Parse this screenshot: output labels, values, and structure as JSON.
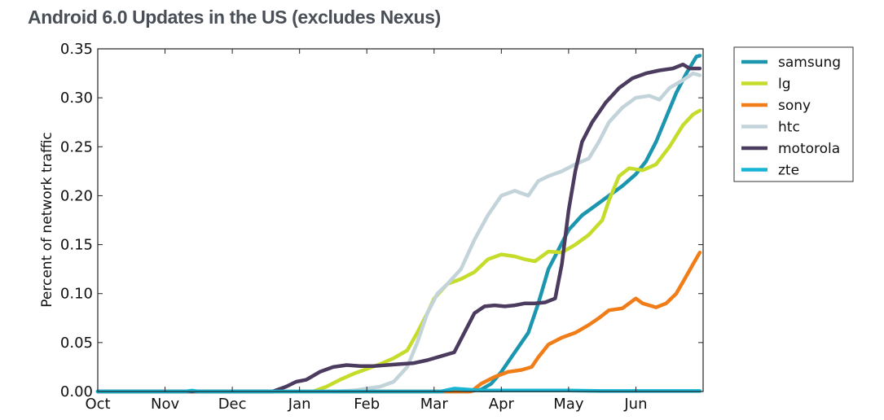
{
  "chart_data": {
    "type": "line",
    "title": "Android 6.0 Updates in the US (excludes Nexus)",
    "ylabel": "Percent of network traffic",
    "xlabel": "",
    "xlim": [
      0,
      9
    ],
    "ylim": [
      0,
      0.35
    ],
    "x_tick_labels": [
      "Oct",
      "Nov",
      "Dec",
      "Jan",
      "Feb",
      "Mar",
      "Apr",
      "May",
      "Jun"
    ],
    "y_ticks": [
      0.0,
      0.05,
      0.1,
      0.15,
      0.2,
      0.25,
      0.3,
      0.35
    ],
    "y_tick_labels": [
      "0.00",
      "0.05",
      "0.10",
      "0.15",
      "0.20",
      "0.25",
      "0.30",
      "0.35"
    ],
    "grid": false,
    "legend_position": "outside-right-top",
    "series": [
      {
        "name": "samsung",
        "color": "#1b96ae",
        "points": [
          [
            0,
            0
          ],
          [
            5.5,
            0
          ],
          [
            5.7,
            0.002
          ],
          [
            5.85,
            0.008
          ],
          [
            6,
            0.02
          ],
          [
            6.2,
            0.04
          ],
          [
            6.4,
            0.06
          ],
          [
            6.55,
            0.09
          ],
          [
            6.7,
            0.125
          ],
          [
            6.85,
            0.145
          ],
          [
            7,
            0.165
          ],
          [
            7.2,
            0.18
          ],
          [
            7.4,
            0.19
          ],
          [
            7.6,
            0.2
          ],
          [
            7.8,
            0.21
          ],
          [
            8,
            0.222
          ],
          [
            8.15,
            0.235
          ],
          [
            8.3,
            0.255
          ],
          [
            8.45,
            0.28
          ],
          [
            8.6,
            0.305
          ],
          [
            8.75,
            0.325
          ],
          [
            8.9,
            0.342
          ],
          [
            8.95,
            0.343
          ]
        ]
      },
      {
        "name": "lg",
        "color": "#c5dc2a",
        "points": [
          [
            0,
            0
          ],
          [
            3.2,
            0
          ],
          [
            3.4,
            0.005
          ],
          [
            3.6,
            0.012
          ],
          [
            3.8,
            0.018
          ],
          [
            4,
            0.023
          ],
          [
            4.2,
            0.028
          ],
          [
            4.4,
            0.034
          ],
          [
            4.6,
            0.042
          ],
          [
            4.75,
            0.06
          ],
          [
            4.9,
            0.08
          ],
          [
            5,
            0.095
          ],
          [
            5.2,
            0.11
          ],
          [
            5.4,
            0.115
          ],
          [
            5.6,
            0.122
          ],
          [
            5.8,
            0.135
          ],
          [
            6,
            0.14
          ],
          [
            6.2,
            0.138
          ],
          [
            6.35,
            0.135
          ],
          [
            6.5,
            0.133
          ],
          [
            6.7,
            0.143
          ],
          [
            6.9,
            0.142
          ],
          [
            7.1,
            0.15
          ],
          [
            7.3,
            0.16
          ],
          [
            7.5,
            0.175
          ],
          [
            7.6,
            0.195
          ],
          [
            7.75,
            0.22
          ],
          [
            7.9,
            0.228
          ],
          [
            8.1,
            0.226
          ],
          [
            8.3,
            0.232
          ],
          [
            8.5,
            0.25
          ],
          [
            8.7,
            0.272
          ],
          [
            8.85,
            0.283
          ],
          [
            8.95,
            0.287
          ]
        ]
      },
      {
        "name": "sony",
        "color": "#f07d18",
        "points": [
          [
            0,
            0
          ],
          [
            5.55,
            0
          ],
          [
            5.7,
            0.008
          ],
          [
            5.9,
            0.015
          ],
          [
            6.1,
            0.02
          ],
          [
            6.3,
            0.022
          ],
          [
            6.45,
            0.025
          ],
          [
            6.55,
            0.035
          ],
          [
            6.7,
            0.048
          ],
          [
            6.9,
            0.055
          ],
          [
            7.1,
            0.06
          ],
          [
            7.3,
            0.068
          ],
          [
            7.45,
            0.075
          ],
          [
            7.6,
            0.083
          ],
          [
            7.8,
            0.085
          ],
          [
            7.9,
            0.09
          ],
          [
            8,
            0.095
          ],
          [
            8.1,
            0.09
          ],
          [
            8.3,
            0.086
          ],
          [
            8.45,
            0.09
          ],
          [
            8.6,
            0.1
          ],
          [
            8.75,
            0.118
          ],
          [
            8.85,
            0.13
          ],
          [
            8.95,
            0.142
          ]
        ]
      },
      {
        "name": "htc",
        "color": "#c3d3da",
        "points": [
          [
            0,
            0
          ],
          [
            3.5,
            0
          ],
          [
            3.8,
            0.001
          ],
          [
            4,
            0.003
          ],
          [
            4.2,
            0.005
          ],
          [
            4.4,
            0.01
          ],
          [
            4.6,
            0.025
          ],
          [
            4.75,
            0.05
          ],
          [
            4.9,
            0.08
          ],
          [
            5.05,
            0.1
          ],
          [
            5.2,
            0.11
          ],
          [
            5.4,
            0.125
          ],
          [
            5.6,
            0.155
          ],
          [
            5.8,
            0.18
          ],
          [
            6,
            0.2
          ],
          [
            6.2,
            0.205
          ],
          [
            6.4,
            0.2
          ],
          [
            6.55,
            0.215
          ],
          [
            6.7,
            0.22
          ],
          [
            6.9,
            0.225
          ],
          [
            7.1,
            0.232
          ],
          [
            7.3,
            0.238
          ],
          [
            7.45,
            0.255
          ],
          [
            7.6,
            0.275
          ],
          [
            7.8,
            0.29
          ],
          [
            8,
            0.3
          ],
          [
            8.2,
            0.302
          ],
          [
            8.35,
            0.298
          ],
          [
            8.5,
            0.31
          ],
          [
            8.7,
            0.318
          ],
          [
            8.85,
            0.325
          ],
          [
            8.95,
            0.323
          ]
        ]
      },
      {
        "name": "motorola",
        "color": "#4b3b5e",
        "points": [
          [
            0,
            0
          ],
          [
            2.6,
            0
          ],
          [
            2.8,
            0.005
          ],
          [
            2.95,
            0.01
          ],
          [
            3.1,
            0.012
          ],
          [
            3.3,
            0.02
          ],
          [
            3.5,
            0.025
          ],
          [
            3.7,
            0.027
          ],
          [
            3.9,
            0.026
          ],
          [
            4.1,
            0.026
          ],
          [
            4.3,
            0.027
          ],
          [
            4.5,
            0.028
          ],
          [
            4.7,
            0.029
          ],
          [
            4.9,
            0.032
          ],
          [
            5.1,
            0.036
          ],
          [
            5.3,
            0.04
          ],
          [
            5.45,
            0.06
          ],
          [
            5.6,
            0.08
          ],
          [
            5.75,
            0.087
          ],
          [
            5.9,
            0.088
          ],
          [
            6.05,
            0.087
          ],
          [
            6.2,
            0.088
          ],
          [
            6.35,
            0.09
          ],
          [
            6.5,
            0.09
          ],
          [
            6.65,
            0.091
          ],
          [
            6.8,
            0.095
          ],
          [
            6.9,
            0.13
          ],
          [
            7,
            0.185
          ],
          [
            7.1,
            0.225
          ],
          [
            7.2,
            0.255
          ],
          [
            7.35,
            0.275
          ],
          [
            7.55,
            0.295
          ],
          [
            7.75,
            0.31
          ],
          [
            7.95,
            0.32
          ],
          [
            8.15,
            0.325
          ],
          [
            8.35,
            0.328
          ],
          [
            8.55,
            0.33
          ],
          [
            8.7,
            0.334
          ],
          [
            8.8,
            0.33
          ],
          [
            8.95,
            0.33
          ]
        ]
      },
      {
        "name": "zte",
        "color": "#18b4d4",
        "points": [
          [
            0,
            0
          ],
          [
            1.3,
            0
          ],
          [
            1.4,
            0.001
          ],
          [
            1.5,
            0
          ],
          [
            5.1,
            0
          ],
          [
            5.3,
            0.003
          ],
          [
            5.5,
            0.002
          ],
          [
            5.7,
            0.001
          ],
          [
            6,
            0.001
          ],
          [
            6.5,
            0.001
          ],
          [
            7,
            0.001
          ],
          [
            7.5,
            0.0005
          ],
          [
            8,
            0.0005
          ],
          [
            8.95,
            0.0005
          ]
        ]
      }
    ]
  }
}
